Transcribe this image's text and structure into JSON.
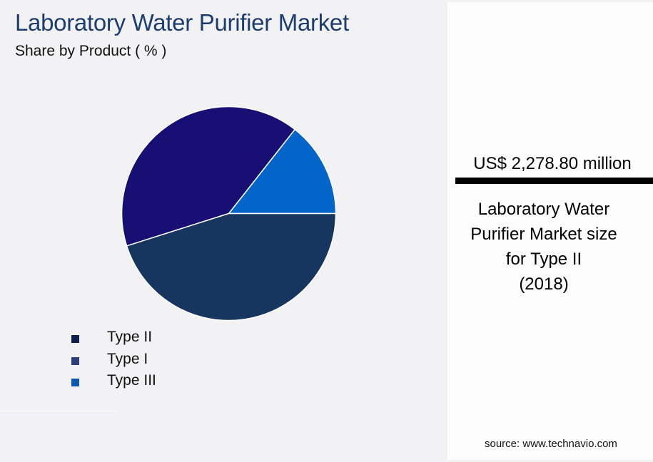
{
  "header": {
    "title": "Laboratory Water Purifier Market",
    "subtitle": "Share by Product ( % )"
  },
  "legend": [
    {
      "label": "Type II",
      "color": "#0e1f4d"
    },
    {
      "label": "Type I",
      "color": "#2c3f7a"
    },
    {
      "label": "Type III",
      "color": "#0e58b0"
    }
  ],
  "panel": {
    "value": "US$ 2,278.80 million",
    "description_lines": [
      "Laboratory Water",
      "Purifier Market size",
      "for Type II",
      "(2018)"
    ],
    "source": "source: www.technavio.com"
  },
  "chart_data": {
    "type": "pie",
    "title": "Laboratory Water Purifier Market",
    "subtitle": "Share by Product ( % )",
    "categories": [
      "Type II",
      "Type I",
      "Type III"
    ],
    "values": [
      40.5,
      45.1,
      14.4
    ],
    "slice_colors": [
      "#170f73",
      "#17365f",
      "#0365c9"
    ],
    "legend_position": "bottom-left",
    "annotation": "US$ 2,278.80 million — Laboratory Water Purifier Market size for Type II (2018)"
  }
}
